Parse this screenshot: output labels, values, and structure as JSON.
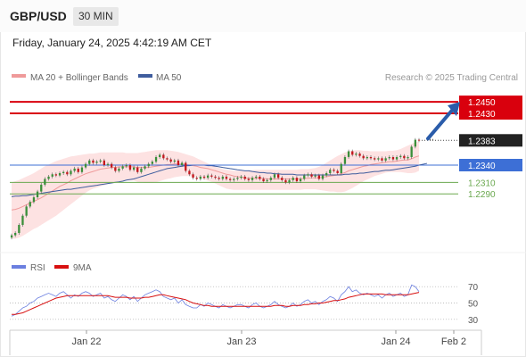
{
  "header": {
    "symbol": "GBP/USD",
    "timeframe": "30 MIN",
    "datetime": "Friday, January 24, 2025 4:42:19 AM CET"
  },
  "colors": {
    "resistance": "#d9000d",
    "support_blue": "#3d6fd6",
    "support_green": "#6aa84f",
    "candle_up": "#3a8f3a",
    "candle_down": "#c4161c",
    "bollinger_fill": "#fde2e2",
    "ma20": "#ef9a9a",
    "ma50": "#3f5d9e",
    "rsi": "#6b7fe0",
    "rsi_ma": "#d81010",
    "arrow": "#2a5caa",
    "current_price_bg": "#222222"
  },
  "chart_data": [
    {
      "type": "candlestick",
      "legend": [
        "MA 20 + Bollinger Bands",
        "MA 50"
      ],
      "watermark": "Research © 2025 Trading Central",
      "ylim": [
        1.2205,
        1.2475
      ],
      "x_ticks": [
        "Jan 22",
        "Jan 23",
        "Jan 24",
        "Feb 2"
      ],
      "price_levels": [
        {
          "label": "1.2450",
          "value": 1.245,
          "kind": "resistance"
        },
        {
          "label": "1.2430",
          "value": 1.243,
          "kind": "resistance"
        },
        {
          "label": "1.2383",
          "value": 1.2383,
          "kind": "current"
        },
        {
          "label": "1.2340",
          "value": 1.234,
          "kind": "pivot"
        },
        {
          "label": "1.2310",
          "value": 1.231,
          "kind": "support"
        },
        {
          "label": "1.2290",
          "value": 1.229,
          "kind": "support"
        }
      ],
      "close": [
        1.2218,
        1.2222,
        1.2236,
        1.2252,
        1.2268,
        1.2276,
        1.2284,
        1.2294,
        1.2306,
        1.2316,
        1.232,
        1.2324,
        1.2322,
        1.2326,
        1.2328,
        1.2324,
        1.233,
        1.2334,
        1.2328,
        1.2336,
        1.2342,
        1.2348,
        1.2344,
        1.2346,
        1.2348,
        1.234,
        1.2342,
        1.2336,
        1.233,
        1.2334,
        1.2338,
        1.234,
        1.2332,
        1.2336,
        1.2328,
        1.2334,
        1.2338,
        1.2342,
        1.2346,
        1.2354,
        1.2358,
        1.2352,
        1.235,
        1.2346,
        1.2348,
        1.234,
        1.2344,
        1.233,
        1.2324,
        1.2318,
        1.2316,
        1.232,
        1.2318,
        1.2322,
        1.232,
        1.2318,
        1.2316,
        1.232,
        1.2316,
        1.2314,
        1.2316,
        1.2318,
        1.232,
        1.2316,
        1.2314,
        1.2318,
        1.232,
        1.2316,
        1.2312,
        1.2314,
        1.2318,
        1.2324,
        1.2318,
        1.2314,
        1.231,
        1.2314,
        1.2318,
        1.2312,
        1.2316,
        1.2322,
        1.2324,
        1.232,
        1.2322,
        1.2316,
        1.2322,
        1.2326,
        1.2332,
        1.233,
        1.2326,
        1.2342,
        1.2354,
        1.2364,
        1.2358,
        1.236,
        1.2356,
        1.2352,
        1.2354,
        1.2352,
        1.235,
        1.2352,
        1.2348,
        1.2352,
        1.2354,
        1.235,
        1.2354,
        1.2356,
        1.2352,
        1.2354,
        1.2372,
        1.2384,
        1.2383
      ],
      "ma20": [
        1.2262,
        1.2263,
        1.2265,
        1.2268,
        1.2271,
        1.2274,
        1.2277,
        1.228,
        1.2283,
        1.2287,
        1.2291,
        1.2295,
        1.2299,
        1.2303,
        1.2306,
        1.2309,
        1.2313,
        1.2316,
        1.2319,
        1.2322,
        1.2325,
        1.2327,
        1.2329,
        1.2331,
        1.2333,
        1.2334,
        1.2335,
        1.2336,
        1.2336,
        1.2337,
        1.2337,
        1.2337,
        1.2337,
        1.2337,
        1.2336,
        1.2336,
        1.2336,
        1.2336,
        1.2337,
        1.2338,
        1.2339,
        1.234,
        1.2341,
        1.2341,
        1.2342,
        1.2342,
        1.2342,
        1.2341,
        1.234,
        1.2339,
        1.2338,
        1.2336,
        1.2335,
        1.2334,
        1.2332,
        1.233,
        1.2328,
        1.2326,
        1.2324,
        1.2323,
        1.2321,
        1.232,
        1.2319,
        1.2318,
        1.2317,
        1.2317,
        1.2317,
        1.2317,
        1.2317,
        1.2316,
        1.2316,
        1.2316,
        1.2316,
        1.2316,
        1.2316,
        1.2316,
        1.2316,
        1.2316,
        1.2316,
        1.2317,
        1.2317,
        1.2318,
        1.2318,
        1.2318,
        1.2319,
        1.232,
        1.2321,
        1.2322,
        1.2323,
        1.2325,
        1.2327,
        1.233,
        1.2332,
        1.2334,
        1.2336,
        1.2338,
        1.2339,
        1.2341,
        1.2342,
        1.2343,
        1.2344,
        1.2345,
        1.2346,
        1.2346,
        1.2347,
        1.2348,
        1.2349,
        1.2349,
        1.2351,
        1.2354,
        1.2356
      ],
      "bb_upper": [
        1.231,
        1.2312,
        1.2314,
        1.2317,
        1.232,
        1.2323,
        1.2326,
        1.233,
        1.2334,
        1.2338,
        1.2341,
        1.2344,
        1.2347,
        1.2349,
        1.2351,
        1.2353,
        1.2355,
        1.2356,
        1.2357,
        1.2358,
        1.2359,
        1.236,
        1.236,
        1.2361,
        1.2362,
        1.2362,
        1.2362,
        1.2362,
        1.2362,
        1.2362,
        1.2362,
        1.2361,
        1.2361,
        1.2361,
        1.2361,
        1.2362,
        1.2363,
        1.2364,
        1.2365,
        1.2366,
        1.2366,
        1.2366,
        1.2366,
        1.2365,
        1.2364,
        1.2363,
        1.2361,
        1.2359,
        1.2357,
        1.2355,
        1.2352,
        1.2349,
        1.2346,
        1.2343,
        1.234,
        1.2337,
        1.2335,
        1.2333,
        1.2332,
        1.2331,
        1.233,
        1.233,
        1.233,
        1.233,
        1.2331,
        1.2331,
        1.2332,
        1.2332,
        1.2332,
        1.2332,
        1.2332,
        1.2332,
        1.2332,
        1.2332,
        1.2332,
        1.2332,
        1.2332,
        1.2332,
        1.2333,
        1.2333,
        1.2333,
        1.2334,
        1.2335,
        1.2337,
        1.234,
        1.2344,
        1.2348,
        1.2352,
        1.2356,
        1.2359,
        1.2362,
        1.2364,
        1.2365,
        1.2366,
        1.2366,
        1.2365,
        1.2365,
        1.2364,
        1.2364,
        1.2364,
        1.2364,
        1.2364,
        1.2365,
        1.2365,
        1.2366,
        1.2368,
        1.2371,
        1.2374,
        1.2377,
        1.238,
        1.2381
      ],
      "bb_lower": [
        1.2212,
        1.2212,
        1.2214,
        1.2217,
        1.2221,
        1.2225,
        1.2229,
        1.2232,
        1.2236,
        1.224,
        1.2244,
        1.2248,
        1.2252,
        1.2257,
        1.2262,
        1.2267,
        1.2272,
        1.2277,
        1.2282,
        1.2287,
        1.2292,
        1.2296,
        1.2299,
        1.2301,
        1.2303,
        1.2305,
        1.2307,
        1.2309,
        1.231,
        1.2311,
        1.2312,
        1.2313,
        1.2313,
        1.2313,
        1.2311,
        1.231,
        1.2309,
        1.2309,
        1.2309,
        1.231,
        1.2312,
        1.2314,
        1.2316,
        1.2317,
        1.2319,
        1.232,
        1.2321,
        1.2321,
        1.2321,
        1.232,
        1.2319,
        1.2317,
        1.2315,
        1.2313,
        1.2311,
        1.2308,
        1.2305,
        1.2302,
        1.2299,
        1.2298,
        1.2297,
        1.2297,
        1.2297,
        1.2297,
        1.2297,
        1.2297,
        1.2297,
        1.2297,
        1.2297,
        1.2297,
        1.2297,
        1.2297,
        1.2297,
        1.2297,
        1.2297,
        1.2297,
        1.2297,
        1.2297,
        1.2297,
        1.2298,
        1.2298,
        1.2298,
        1.2298,
        1.2297,
        1.2296,
        1.2295,
        1.2294,
        1.2294,
        1.2293,
        1.2293,
        1.2294,
        1.2297,
        1.23,
        1.2304,
        1.2308,
        1.2312,
        1.2315,
        1.2318,
        1.2321,
        1.2323,
        1.2325,
        1.2327,
        1.2328,
        1.2328,
        1.2328,
        1.2328,
        1.2327,
        1.2326,
        1.2326,
        1.2327,
        1.233
      ],
      "ma50": [
        1.2285,
        1.2286,
        1.2286,
        1.2287,
        1.2287,
        1.2288,
        1.2289,
        1.229,
        1.2291,
        1.2292,
        1.2293,
        1.2294,
        1.2295,
        1.2296,
        1.2297,
        1.2298,
        1.2298,
        1.2299,
        1.23,
        1.2301,
        1.2302,
        1.2303,
        1.2304,
        1.2305,
        1.2306,
        1.2307,
        1.2308,
        1.2309,
        1.231,
        1.2311,
        1.2312,
        1.2314,
        1.2315,
        1.2316,
        1.2318,
        1.232,
        1.2322,
        1.2324,
        1.2326,
        1.2328,
        1.233,
        1.2332,
        1.2334,
        1.2335,
        1.2336,
        1.2337,
        1.2338,
        1.2339,
        1.2339,
        1.234,
        1.234,
        1.234,
        1.234,
        1.2339,
        1.2339,
        1.2338,
        1.2337,
        1.2336,
        1.2335,
        1.2334,
        1.2333,
        1.2332,
        1.2331,
        1.233,
        1.233,
        1.2329,
        1.2328,
        1.2327,
        1.2327,
        1.2326,
        1.2326,
        1.2325,
        1.2325,
        1.2324,
        1.2324,
        1.2324,
        1.2324,
        1.2323,
        1.2323,
        1.2323,
        1.2323,
        1.2323,
        1.2323,
        1.2323,
        1.2323,
        1.2323,
        1.2323,
        1.2323,
        1.2323,
        1.2323,
        1.2324,
        1.2324,
        1.2325,
        1.2325,
        1.2326,
        1.2326,
        1.2327,
        1.2328,
        1.2329,
        1.2329,
        1.233,
        1.2331,
        1.2331,
        1.2332,
        1.2333,
        1.2334,
        1.2335,
        1.2336,
        1.2337,
        1.2338,
        1.234
      ]
    },
    {
      "type": "line",
      "legend": [
        "RSI",
        "9MA"
      ],
      "ylim": [
        20,
        80
      ],
      "y_ticks": [
        70,
        50,
        30
      ],
      "rsi": [
        34,
        36,
        40,
        44,
        46,
        50,
        52,
        56,
        58,
        60,
        62,
        60,
        58,
        62,
        64,
        60,
        56,
        60,
        58,
        62,
        64,
        62,
        58,
        60,
        62,
        56,
        58,
        54,
        52,
        56,
        60,
        58,
        54,
        58,
        52,
        56,
        60,
        62,
        64,
        66,
        64,
        58,
        56,
        54,
        56,
        50,
        54,
        48,
        46,
        44,
        44,
        48,
        46,
        50,
        48,
        46,
        44,
        48,
        46,
        44,
        46,
        48,
        48,
        46,
        44,
        48,
        50,
        46,
        44,
        46,
        48,
        52,
        48,
        46,
        44,
        46,
        50,
        46,
        48,
        52,
        54,
        50,
        52,
        48,
        52,
        54,
        58,
        56,
        52,
        60,
        64,
        70,
        64,
        66,
        62,
        60,
        62,
        60,
        58,
        60,
        56,
        60,
        62,
        58,
        60,
        62,
        58,
        60,
        72,
        70,
        64
      ],
      "rsi_ma": [
        36,
        36,
        37,
        38,
        40,
        42,
        44,
        46,
        48,
        50,
        52,
        54,
        56,
        57,
        58,
        59,
        59,
        59,
        59,
        59,
        59,
        59,
        59,
        59,
        59,
        59,
        59,
        58,
        57,
        57,
        57,
        57,
        56,
        56,
        56,
        56,
        57,
        57,
        58,
        59,
        60,
        60,
        59,
        58,
        57,
        56,
        55,
        54,
        52,
        50,
        49,
        48,
        47,
        47,
        46,
        46,
        46,
        46,
        46,
        46,
        46,
        46,
        46,
        46,
        46,
        46,
        46,
        46,
        46,
        46,
        46,
        47,
        47,
        47,
        46,
        46,
        47,
        47,
        47,
        48,
        48,
        49,
        49,
        50,
        50,
        51,
        52,
        53,
        53,
        54,
        55,
        57,
        58,
        59,
        60,
        61,
        61,
        61,
        61,
        61,
        61,
        60,
        60,
        60,
        60,
        60,
        60,
        60,
        61,
        62,
        63
      ]
    }
  ]
}
